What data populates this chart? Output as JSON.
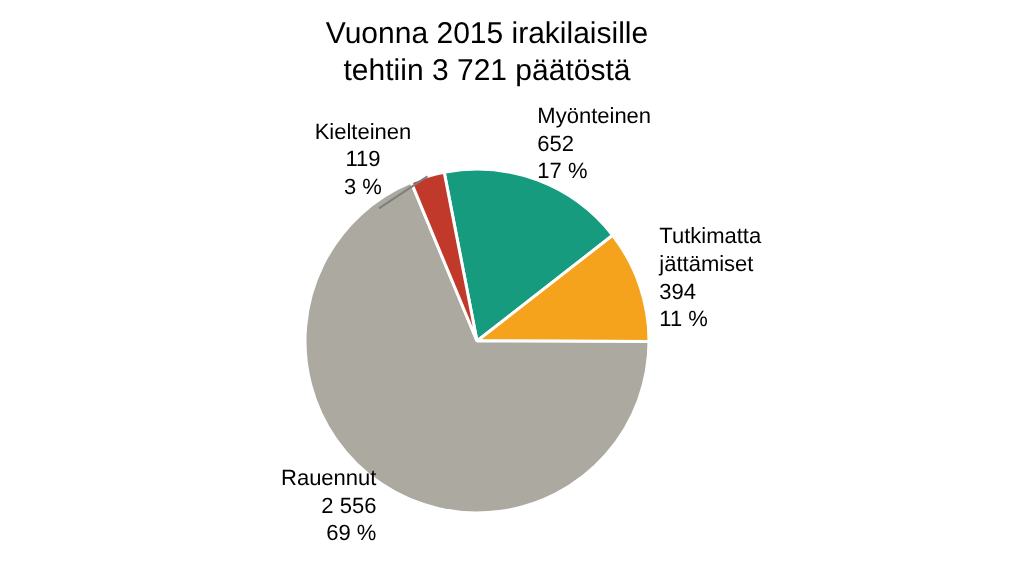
{
  "chart_data": {
    "type": "pie",
    "title": "Vuonna 2015 irakilaisille\ntehtiin 3 721 päätöstä",
    "categories": [
      "Myönteinen",
      "Tutkimatta\njättämiset",
      "Rauennut",
      "Kielteinen"
    ],
    "values": [
      652,
      394,
      2556,
      119
    ],
    "colors": [
      "#169b7f",
      "#f5a31c",
      "#aba9a0",
      "#c0392b"
    ],
    "value_labels": [
      "652\n17 %",
      "394\n11 %",
      "2 556\n69 %",
      "119\n3 %"
    ],
    "legend": false
  }
}
